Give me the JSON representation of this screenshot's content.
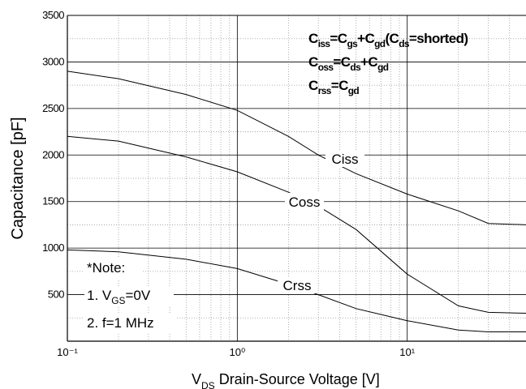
{
  "chart_data": {
    "type": "line",
    "log_x": true,
    "grid": true,
    "ylabel": "Capacitance   [pF]",
    "xlabel": [
      "V",
      "DS",
      "  Drain-Source Voltage [V]"
    ],
    "xlim": [
      0.1,
      50
    ],
    "ylim": [
      0,
      3500
    ],
    "xticks": [
      {
        "value": 0.1,
        "label": "10⁻¹"
      },
      {
        "value": 1,
        "label": "10⁰"
      },
      {
        "value": 10,
        "label": "10¹"
      }
    ],
    "yticks": [
      500,
      1000,
      1500,
      2000,
      2500,
      3000,
      3500
    ],
    "formulas": [
      [
        "C",
        "iss",
        "=C",
        "gs",
        "+C",
        "gd",
        "(C",
        "ds",
        "=shorted)"
      ],
      [
        "C",
        "oss",
        "=C",
        "ds",
        "+C",
        "gd"
      ],
      [
        "C",
        "rss",
        "=C",
        "gd"
      ]
    ],
    "notes": [
      [
        "*Note:"
      ],
      [
        "1. V",
        "GS",
        "=0V"
      ],
      [
        "2. f=1 MHz"
      ]
    ],
    "x": [
      0.1,
      0.2,
      0.5,
      1,
      2,
      3,
      5,
      10,
      20,
      30,
      50
    ],
    "series": [
      {
        "name": "Ciss",
        "color": "#000000",
        "values": [
          2900,
          2820,
          2650,
          2480,
          2200,
          2000,
          1800,
          1580,
          1400,
          1265,
          1250
        ]
      },
      {
        "name": "Coss",
        "color": "#000000",
        "values": [
          2200,
          2150,
          1980,
          1820,
          1600,
          1450,
          1200,
          720,
          380,
          310,
          300
        ]
      },
      {
        "name": "Crss",
        "color": "#000000",
        "values": [
          980,
          960,
          880,
          780,
          610,
          500,
          350,
          220,
          120,
          100,
          100
        ]
      }
    ]
  }
}
